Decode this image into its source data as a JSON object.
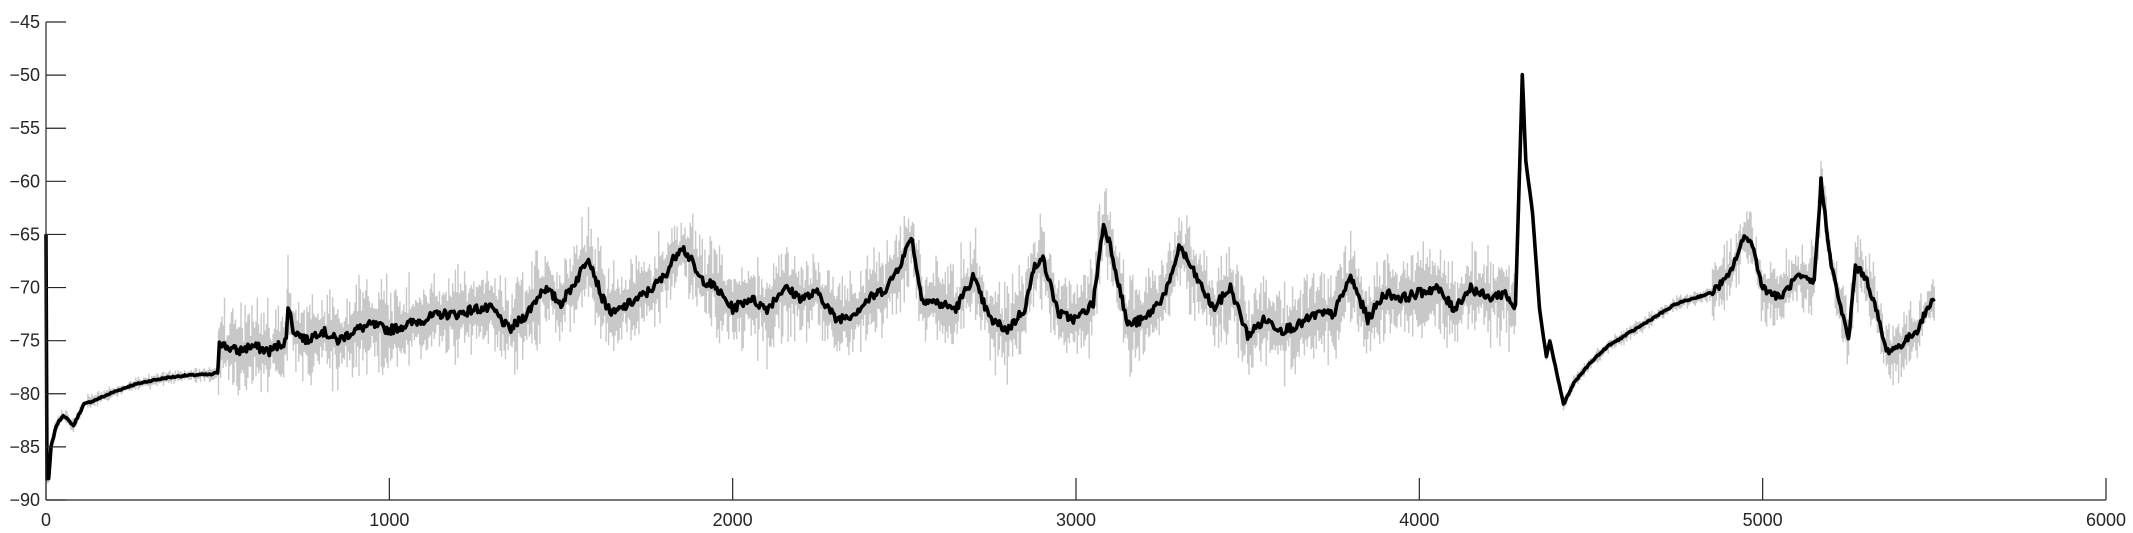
{
  "chart_data": {
    "type": "line",
    "title": "",
    "xlabel": "",
    "ylabel": "",
    "xlim": [
      0,
      6000
    ],
    "ylim": [
      -90,
      -45
    ],
    "xticks": [
      "0",
      "1000",
      "2000",
      "3000",
      "4000",
      "5000",
      "6000"
    ],
    "yticks": [
      "-90",
      "-85",
      "-80",
      "-75",
      "-70",
      "-65",
      "-60",
      "-55",
      "-50",
      "-45"
    ],
    "grid": false,
    "legend": "none",
    "colors": {
      "mean": "#000000",
      "band": "#c8c8c8",
      "axis": "#262626"
    },
    "series": [
      {
        "role": "mean",
        "x": [
          0,
          3,
          8,
          15,
          30,
          50,
          80,
          110,
          150,
          200,
          250,
          300,
          350,
          400,
          450,
          480,
          500,
          505,
          520,
          560,
          600,
          650,
          700,
          705,
          720,
          760,
          800,
          850,
          900,
          950,
          1000,
          1050,
          1100,
          1150,
          1200,
          1250,
          1300,
          1350,
          1400,
          1450,
          1500,
          1550,
          1580,
          1620,
          1650,
          1700,
          1750,
          1800,
          1850,
          1880,
          1900,
          1950,
          2000,
          2050,
          2100,
          2150,
          2200,
          2250,
          2300,
          2350,
          2400,
          2450,
          2500,
          2520,
          2550,
          2600,
          2650,
          2700,
          2750,
          2800,
          2850,
          2880,
          2900,
          2950,
          3000,
          3050,
          3080,
          3100,
          3150,
          3200,
          3250,
          3280,
          3300,
          3350,
          3400,
          3450,
          3500,
          3550,
          3600,
          3650,
          3700,
          3750,
          3800,
          3850,
          3900,
          3950,
          4000,
          4050,
          4100,
          4150,
          4200,
          4250,
          4280,
          4300,
          4310,
          4330,
          4350,
          4370,
          4380,
          4400,
          4420,
          4450,
          4500,
          4550,
          4600,
          4650,
          4700,
          4750,
          4800,
          4850,
          4900,
          4950,
          4970,
          5000,
          5050,
          5100,
          5150,
          5170,
          5200,
          5250,
          5270,
          5300,
          5330,
          5360,
          5400,
          5450,
          5480,
          5500
        ],
        "y": [
          -65,
          -88,
          -88,
          -85,
          -83,
          -82,
          -83,
          -81,
          -80.5,
          -79.8,
          -79.2,
          -78.8,
          -78.5,
          -78.3,
          -78.2,
          -78.2,
          -78,
          -75,
          -75.5,
          -76,
          -75.5,
          -76,
          -75,
          -71.5,
          -74,
          -75,
          -74,
          -75,
          -74,
          -73.5,
          -74,
          -73.5,
          -73,
          -72.5,
          -72.5,
          -72,
          -72,
          -74,
          -72.5,
          -70,
          -71.5,
          -69,
          -67,
          -71,
          -72.5,
          -71.5,
          -70.5,
          -69,
          -66,
          -67.5,
          -69,
          -70,
          -72,
          -71,
          -72,
          -70,
          -71,
          -70.5,
          -73,
          -72.5,
          -71,
          -70,
          -67,
          -65,
          -71,
          -71.5,
          -72,
          -69,
          -73,
          -74,
          -72,
          -68,
          -67,
          -72.5,
          -73,
          -71.5,
          -64,
          -66,
          -73.5,
          -73,
          -71,
          -69,
          -66,
          -69,
          -72,
          -70,
          -74.5,
          -73,
          -74,
          -73.5,
          -72.5,
          -72.5,
          -69,
          -73,
          -70.5,
          -71,
          -70.5,
          -70,
          -72,
          -70,
          -71,
          -70.5,
          -72,
          -50,
          -58,
          -63,
          -72,
          -76.5,
          -75,
          -78,
          -81,
          -79,
          -77,
          -75.5,
          -74.5,
          -73.5,
          -72.5,
          -71.5,
          -71,
          -70.5,
          -69,
          -65,
          -66,
          -70,
          -71,
          -69,
          -69.5,
          -60,
          -68,
          -75,
          -68,
          -69,
          -72,
          -76,
          -75.5,
          -74,
          -72,
          -71
        ]
      }
    ]
  }
}
